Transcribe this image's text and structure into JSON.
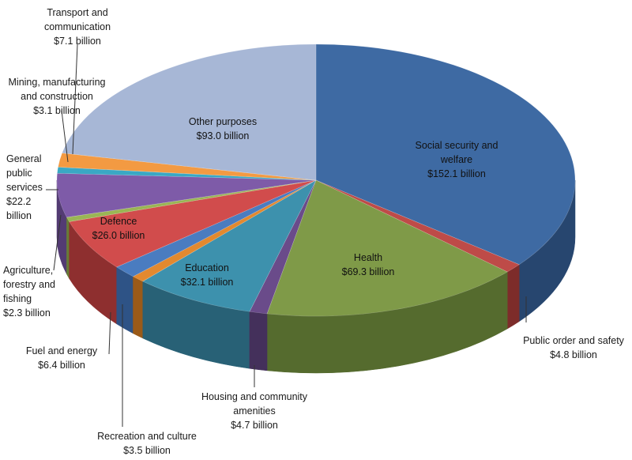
{
  "chart_data": {
    "type": "pie",
    "title": "",
    "start_angle_deg": -90,
    "slices": [
      {
        "label": "Social security and welfare",
        "label_lines": [
          "Social security and",
          "welfare",
          "$152.1 billion"
        ],
        "value": 152.1,
        "color": "#3e6aa3",
        "side": "#27466f",
        "label_pos": "inside"
      },
      {
        "label": "Public order and safety",
        "label_lines": [
          "Public order and safety",
          "$4.8 billion"
        ],
        "value": 4.8,
        "color": "#be4b48",
        "side": "#7d2c2a",
        "label_pos": "outside"
      },
      {
        "label": "Health",
        "label_lines": [
          "Health",
          "$69.3 billion"
        ],
        "value": 69.3,
        "color": "#7f9a48",
        "side": "#556b2e",
        "label_pos": "inside"
      },
      {
        "label": "Housing and community amenities",
        "label_lines": [
          "Housing and community",
          "amenities",
          "$4.7 billion"
        ],
        "value": 4.7,
        "color": "#6a4b8a",
        "side": "#44305b",
        "label_pos": "outside"
      },
      {
        "label": "Education",
        "label_lines": [
          "Education",
          "$32.1 billion"
        ],
        "value": 32.1,
        "color": "#3d91ad",
        "side": "#286176",
        "label_pos": "inside"
      },
      {
        "label": "Recreation and culture",
        "label_lines": [
          "Recreation and culture",
          "$3.5 billion"
        ],
        "value": 3.5,
        "color": "#e3892f",
        "side": "#9a5a19",
        "label_pos": "outside"
      },
      {
        "label": "Fuel and energy",
        "label_lines": [
          "Fuel and energy",
          "$6.4 billion"
        ],
        "value": 6.4,
        "color": "#4a7cc0",
        "side": "#2e5386",
        "label_pos": "outside"
      },
      {
        "label": "Defence",
        "label_lines": [
          "Defence",
          "$26.0 billion"
        ],
        "value": 26.0,
        "color": "#d14c4c",
        "side": "#8e2f2f",
        "label_pos": "inside"
      },
      {
        "label": "Agriculture, forestry and fishing",
        "label_lines": [
          "Agriculture,",
          "forestry and",
          "fishing",
          "$2.3 billion"
        ],
        "value": 2.3,
        "color": "#9ab554",
        "side": "#687b36",
        "label_pos": "outside"
      },
      {
        "label": "General public services",
        "label_lines": [
          "General",
          "public",
          "services",
          "$22.2",
          "billion"
        ],
        "value": 22.2,
        "color": "#7e5ba8",
        "side": "#533b73",
        "label_pos": "outside"
      },
      {
        "label": "Mining, manufacturing and construction",
        "label_lines": [
          "Mining, manufacturing",
          "and construction",
          "$3.1 billion"
        ],
        "value": 3.1,
        "color": "#3aa8c4",
        "side": "#267287",
        "label_pos": "outside"
      },
      {
        "label": "Transport and communication",
        "label_lines": [
          "Transport and",
          "communication",
          "$7.1 billion"
        ],
        "value": 7.1,
        "color": "#f39a42",
        "side": "#a5651f",
        "label_pos": "outside"
      },
      {
        "label": "Other purposes",
        "label_lines": [
          "Other purposes",
          "$93.0 billion"
        ],
        "value": 93.0,
        "color": "#a7b7d6",
        "side": "#7585a3",
        "label_pos": "inside"
      }
    ]
  }
}
